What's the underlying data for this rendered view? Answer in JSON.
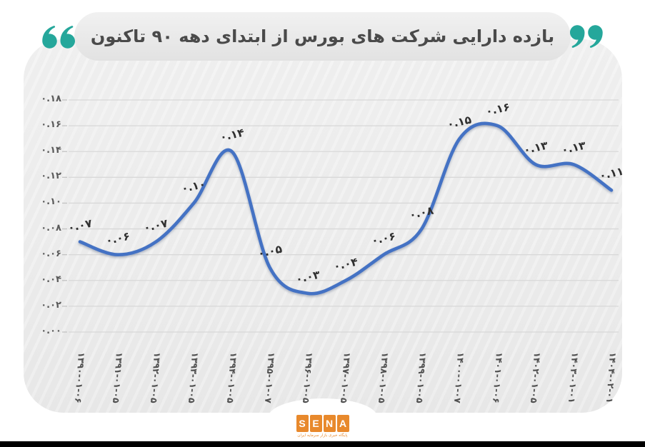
{
  "header": {
    "title": "بازده دارایی شرکت های بورس از ابتدای دهه ۹۰ تاکنون",
    "quote_color": "#25a79b"
  },
  "chart_data": {
    "type": "line",
    "title": "بازده دارایی شرکت های بورس از ابتدای دهه ۹۰ تاکنون",
    "categories": [
      "۱۳۹۰-۰۱-۰۶",
      "۱۳۹۱-۰۱-۰۵",
      "۱۳۹۲-۰۱-۰۵",
      "۱۳۹۳-۰۱-۰۵",
      "۱۳۹۴-۰۱-۰۵",
      "۱۳۹۵-۰۱-۰۷",
      "۱۳۹۶-۰۱-۰۵",
      "۱۳۹۷-۰۱-۰۵",
      "۱۳۹۸-۰۱-۰۵",
      "۱۳۹۹-۰۱-۰۵",
      "۱۴۰۰-۰۱-۰۷",
      "۱۴۰۱-۰۱-۰۶",
      "۱۴۰۲-۰۱-۰۵",
      "۱۴۰۳-۰۱-۰۱",
      "۱۴۰۴-۰۲-۰۱"
    ],
    "values": [
      0.07,
      0.06,
      0.07,
      0.1,
      0.14,
      0.05,
      0.03,
      0.04,
      0.06,
      0.08,
      0.15,
      0.16,
      0.13,
      0.13,
      0.11
    ],
    "value_labels": [
      "۰.۰۷",
      "۰.۰۶",
      "۰.۰۷",
      "۰.۱۰",
      "۰.۱۴",
      "۰.۰۵",
      "۰.۰۳",
      "۰.۰۴",
      "۰.۰۶",
      "۰.۰۸",
      "۰.۱۵",
      "۰.۱۶",
      "۰.۱۳",
      "۰.۱۳",
      "۰.۱۱"
    ],
    "y_ticks": [
      {
        "label": "۰.۱۸",
        "value": 0.18
      },
      {
        "label": "۰.۱۶",
        "value": 0.16
      },
      {
        "label": "۰.۱۴",
        "value": 0.14
      },
      {
        "label": "۰.۱۲",
        "value": 0.12
      },
      {
        "label": "۰.۱۰",
        "value": 0.1
      },
      {
        "label": "۰.۰۸",
        "value": 0.08
      },
      {
        "label": "۰.۰۶",
        "value": 0.06
      },
      {
        "label": "۰.۰۴",
        "value": 0.04
      },
      {
        "label": "۰.۰۲",
        "value": 0.02
      },
      {
        "label": "۰.۰۰",
        "value": 0.0
      }
    ],
    "ylim": [
      0,
      0.18
    ],
    "xlabel": "",
    "ylabel": "",
    "grid": true,
    "legend": "none",
    "line_color": "#4472c4",
    "grid_color": "#d8d8d8"
  },
  "footer": {
    "logo_letters": [
      "S",
      "E",
      "N",
      "A"
    ],
    "logo_tagline": "پایگاه خبری بازار سرمایه ایران",
    "logo_color": "#e8892c",
    "bottom_bar_color": "#000000"
  }
}
